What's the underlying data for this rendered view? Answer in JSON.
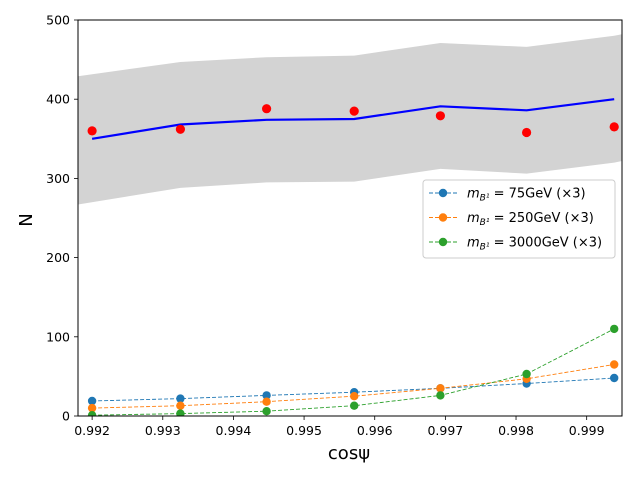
{
  "chart_data": {
    "type": "line",
    "title": "",
    "xlabel": "cosψ",
    "ylabel": "N",
    "xlim": [
      0.9918,
      0.9995
    ],
    "ylim": [
      0,
      500
    ],
    "xticks": [
      0.992,
      0.993,
      0.994,
      0.995,
      0.996,
      0.997,
      0.998,
      0.999
    ],
    "xtick_labels": [
      "0.992",
      "0.993",
      "0.994",
      "0.995",
      "0.996",
      "0.997",
      "0.998",
      "0.999"
    ],
    "yticks": [
      0,
      100,
      200,
      300,
      400,
      500
    ],
    "ytick_labels": [
      "0",
      "100",
      "200",
      "300",
      "400",
      "500"
    ],
    "grid": false,
    "legend_position": "center-right",
    "x": [
      0.992,
      0.99325,
      0.99447,
      0.99571,
      0.99693,
      0.99815,
      0.99939
    ],
    "band": {
      "name": "uncertainty band",
      "color": "#d3d3d3",
      "x": [
        0.9918,
        0.99325,
        0.99447,
        0.99571,
        0.99693,
        0.99815,
        0.99939,
        0.9995
      ],
      "upper": [
        429,
        447,
        453,
        455,
        471,
        466,
        480,
        482
      ],
      "lower": [
        267,
        288,
        295,
        296,
        312,
        306,
        320,
        322
      ]
    },
    "expected_line": {
      "name": "expected",
      "color": "#0000ff",
      "values": [
        350,
        368,
        374,
        375,
        391,
        386,
        400
      ]
    },
    "observed_points": {
      "name": "observed",
      "color": "#ff0000",
      "values": [
        360,
        362,
        388,
        385,
        379,
        358,
        365
      ]
    },
    "series": [
      {
        "name": "m_B1 = 75GeV (×3)",
        "legend_main": "m",
        "legend_sub": "B¹",
        "legend_rest": " = 75GeV (×3)",
        "color": "#1f77b4",
        "values": [
          19,
          22,
          26,
          30,
          35,
          41,
          48
        ]
      },
      {
        "name": "m_B1 = 250GeV (×3)",
        "legend_main": "m",
        "legend_sub": "B¹",
        "legend_rest": " = 250GeV (×3)",
        "color": "#ff7f0e",
        "values": [
          10,
          13,
          18,
          25,
          35,
          47,
          65
        ]
      },
      {
        "name": "m_B1 = 3000GeV (×3)",
        "legend_main": "m",
        "legend_sub": "B¹",
        "legend_rest": " = 3000GeV (×3)",
        "color": "#2ca02c",
        "values": [
          1,
          3,
          6,
          13,
          26,
          53,
          110
        ]
      }
    ]
  }
}
